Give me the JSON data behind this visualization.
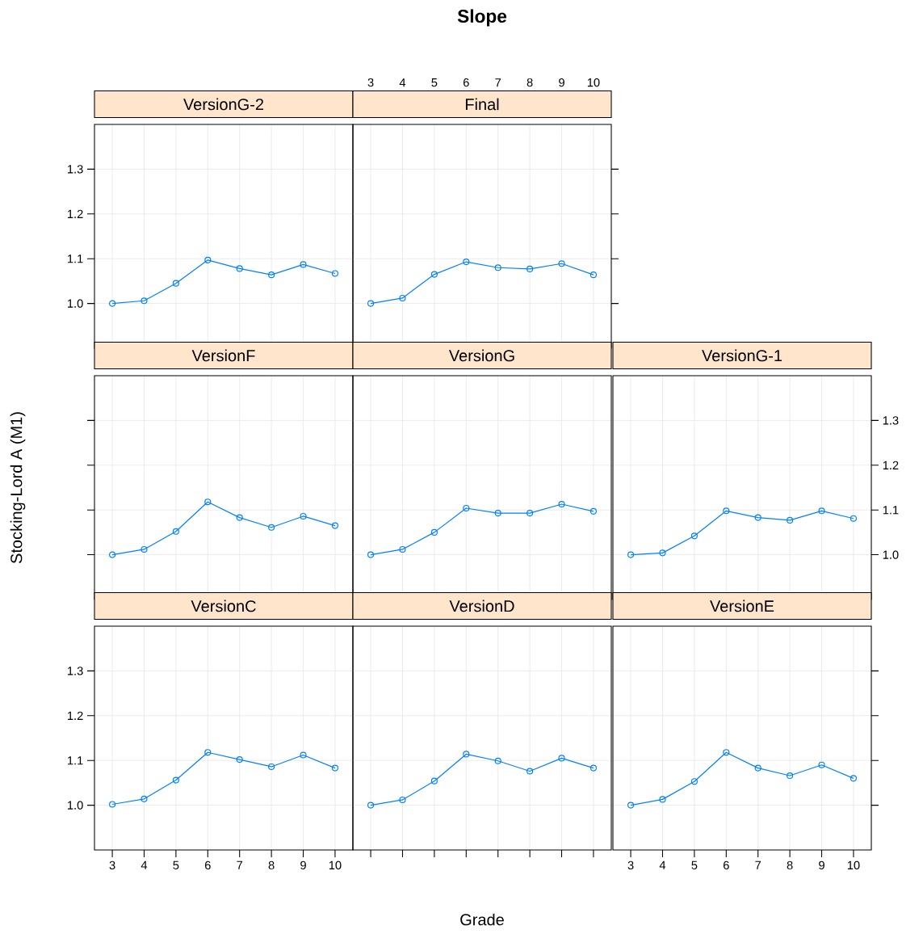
{
  "chart_data": [
    {
      "type": "line",
      "title": "VersionG-2",
      "annotations": [
        "Slope"
      ],
      "x": [
        3,
        4,
        5,
        6,
        7,
        8,
        9,
        10
      ],
      "values": [
        1.0,
        1.006,
        1.045,
        1.097,
        1.078,
        1.064,
        1.087,
        1.067
      ],
      "color": "#0080ff",
      "marker": "circle",
      "xlim": [
        2.44,
        10.56
      ],
      "ylim": [
        0.9,
        1.4
      ],
      "xticks": [
        3,
        4,
        5,
        6,
        7,
        8,
        9,
        10
      ],
      "yticks": [
        {
          "value": 1.0,
          "label": "1.0"
        },
        {
          "value": 1.1,
          "label": "1.1"
        },
        {
          "value": 1.2,
          "label": "1.2"
        },
        {
          "value": 1.3,
          "label": "1.3"
        }
      ],
      "grid": true,
      "tick_labels": "y"
    },
    {
      "type": "line",
      "title": "Final",
      "x": [
        3,
        4,
        5,
        6,
        7,
        8,
        9,
        10
      ],
      "values": [
        1.0,
        1.012,
        1.065,
        1.093,
        1.08,
        1.077,
        1.089,
        1.064
      ],
      "color": "#0080ff",
      "marker": "circle",
      "xlim": [
        2.44,
        10.56
      ],
      "ylim": [
        0.9,
        1.4
      ],
      "xticks": [
        3,
        4,
        5,
        6,
        7,
        8,
        9,
        10
      ],
      "yticks": [
        1.0,
        1.1,
        1.2,
        1.3
      ],
      "grid": true,
      "tick_labels": "x"
    },
    {
      "type": "line",
      "title": "VersionF",
      "ylabel": "Stocking-Lord A (M1)",
      "x": [
        3,
        4,
        5,
        6,
        7,
        8,
        9,
        10
      ],
      "values": [
        1.0,
        1.012,
        1.052,
        1.118,
        1.083,
        1.061,
        1.086,
        1.065
      ],
      "color": "#0080ff",
      "marker": "circle",
      "xlim": [
        2.44,
        10.56
      ],
      "ylim": [
        0.9,
        1.4
      ],
      "xticks": [
        3,
        4,
        5,
        6,
        7,
        8,
        9,
        10
      ],
      "yticks": [
        1.0,
        1.1,
        1.2,
        1.3
      ],
      "grid": true,
      "tick_labels": false
    },
    {
      "type": "line",
      "title": "VersionG",
      "x": [
        3,
        4,
        5,
        6,
        7,
        8,
        9,
        10
      ],
      "values": [
        1.0,
        1.012,
        1.05,
        1.104,
        1.093,
        1.093,
        1.113,
        1.097
      ],
      "color": "#0080ff",
      "marker": "circle",
      "xlim": [
        2.44,
        10.56
      ],
      "ylim": [
        0.9,
        1.4
      ],
      "xticks": [
        3,
        4,
        5,
        6,
        7,
        8,
        9,
        10
      ],
      "yticks": [
        1.0,
        1.1,
        1.2,
        1.3
      ],
      "grid": true,
      "tick_labels": false
    },
    {
      "type": "line",
      "title": "VersionG-1",
      "x": [
        3,
        4,
        5,
        6,
        7,
        8,
        9,
        10
      ],
      "values": [
        1.0,
        1.004,
        1.042,
        1.098,
        1.083,
        1.077,
        1.098,
        1.081
      ],
      "color": "#0080ff",
      "marker": "circle",
      "xlim": [
        2.44,
        10.56
      ],
      "ylim": [
        0.9,
        1.4
      ],
      "xticks": [
        3,
        4,
        5,
        6,
        7,
        8,
        9,
        10
      ],
      "yticks": [
        {
          "value": 1.0,
          "label": "1.0"
        },
        {
          "value": 1.1,
          "label": "1.1"
        },
        {
          "value": 1.2,
          "label": "1.2"
        },
        {
          "value": 1.3,
          "label": "1.3"
        }
      ],
      "grid": true,
      "tick_labels": "y"
    },
    {
      "type": "line",
      "title": "VersionC",
      "x": [
        3,
        4,
        5,
        6,
        7,
        8,
        9,
        10
      ],
      "values": [
        1.002,
        1.014,
        1.056,
        1.118,
        1.102,
        1.086,
        1.112,
        1.083
      ],
      "color": "#0080ff",
      "marker": "circle",
      "xlim": [
        2.44,
        10.56
      ],
      "ylim": [
        0.9,
        1.4
      ],
      "xticks": [
        3,
        4,
        5,
        6,
        7,
        8,
        9,
        10
      ],
      "yticks": [
        {
          "value": 1.0,
          "label": "1.0"
        },
        {
          "value": 1.1,
          "label": "1.1"
        },
        {
          "value": 1.2,
          "label": "1.2"
        },
        {
          "value": 1.3,
          "label": "1.3"
        }
      ],
      "grid": true
    },
    {
      "type": "line",
      "title": "VersionD",
      "xlabel": "Grade",
      "x": [
        3,
        4,
        5,
        6,
        7,
        8,
        9,
        10
      ],
      "values": [
        1.0,
        1.012,
        1.054,
        1.114,
        1.099,
        1.076,
        1.105,
        1.083
      ],
      "color": "#0080ff",
      "marker": "circle",
      "xlim": [
        2.44,
        10.56
      ],
      "ylim": [
        0.9,
        1.4
      ],
      "xticks": [
        3,
        4,
        5,
        6,
        7,
        8,
        9,
        10
      ],
      "yticks": [
        1.0,
        1.1,
        1.2,
        1.3
      ],
      "grid": true,
      "tick_labels": false
    },
    {
      "type": "line",
      "title": "VersionE",
      "x": [
        3,
        4,
        5,
        6,
        7,
        8,
        9,
        10
      ],
      "values": [
        1.0,
        1.013,
        1.053,
        1.118,
        1.083,
        1.066,
        1.09,
        1.06
      ],
      "color": "#0080ff",
      "marker": "circle",
      "xlim": [
        2.44,
        10.56
      ],
      "ylim": [
        0.9,
        1.4
      ],
      "xticks": [
        3,
        4,
        5,
        6,
        7,
        8,
        9,
        10
      ],
      "yticks": [
        1.0,
        1.1,
        1.2,
        1.3
      ],
      "grid": true,
      "tick_labels": "x"
    }
  ]
}
